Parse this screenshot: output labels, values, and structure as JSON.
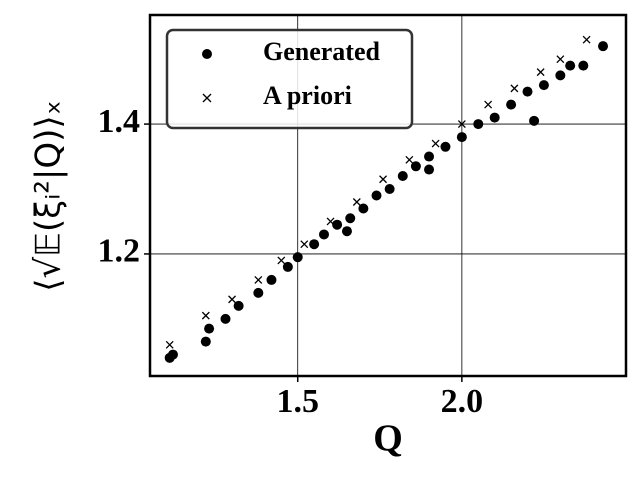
{
  "chart_data": {
    "type": "scatter",
    "xlabel": "Q",
    "ylabel": "⟨√𝔼(ξᵢ²|Q)⟩ₓ",
    "xlim": [
      1.05,
      2.5
    ],
    "ylim": [
      1.012,
      1.568
    ],
    "xticks": [
      1.5,
      {
        "value": 2,
        "label": "2.0"
      }
    ],
    "yticks": [
      1.2,
      1.4
    ],
    "grid": true,
    "legend": "upper left",
    "series": [
      {
        "name": "Generated",
        "color": "#000000",
        "marker": "o",
        "x": [
          1.11,
          1.12,
          1.22,
          1.23,
          1.28,
          1.32,
          1.38,
          1.42,
          1.47,
          1.5,
          1.55,
          1.58,
          1.62,
          1.66,
          1.7,
          1.74,
          1.78,
          1.82,
          1.86,
          1.9,
          1.95,
          2.0,
          2.05,
          2.1,
          2.15,
          2.2,
          2.25,
          2.3,
          2.33,
          2.37,
          2.43,
          2.22,
          1.9,
          1.65
        ],
        "values": [
          1.04,
          1.045,
          1.065,
          1.085,
          1.1,
          1.12,
          1.14,
          1.16,
          1.18,
          1.195,
          1.215,
          1.23,
          1.245,
          1.255,
          1.27,
          1.29,
          1.3,
          1.32,
          1.335,
          1.35,
          1.365,
          1.38,
          1.4,
          1.41,
          1.43,
          1.45,
          1.46,
          1.475,
          1.49,
          1.49,
          1.52,
          1.405,
          1.33,
          1.235
        ]
      },
      {
        "name": "A priori",
        "color": "#000000",
        "marker": "x",
        "x": [
          1.11,
          1.22,
          1.3,
          1.38,
          1.45,
          1.52,
          1.6,
          1.68,
          1.76,
          1.84,
          1.92,
          2.0,
          2.08,
          2.16,
          2.24,
          2.3,
          2.38
        ],
        "values": [
          1.06,
          1.105,
          1.13,
          1.16,
          1.19,
          1.215,
          1.25,
          1.28,
          1.315,
          1.345,
          1.37,
          1.4,
          1.43,
          1.455,
          1.48,
          1.5,
          1.53
        ]
      }
    ]
  }
}
